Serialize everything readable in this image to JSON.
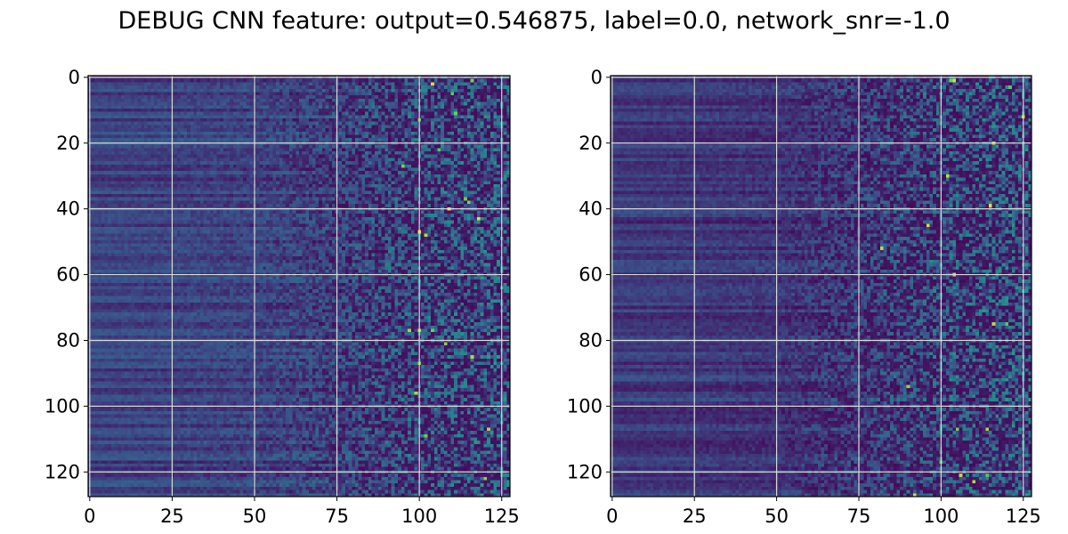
{
  "figure": {
    "title": "DEBUG CNN feature: output=0.546875, label=0.0, network_snr=-1.0"
  },
  "colormap": [
    "#440154",
    "#3b528b",
    "#21918c",
    "#5ec962",
    "#fde725"
  ],
  "chart_data": [
    {
      "type": "heatmap",
      "title": "",
      "xlabel": "",
      "ylabel": "",
      "shape": [
        128,
        128
      ],
      "xlim": [
        -0.5,
        127.5
      ],
      "ylim": [
        127.5,
        -0.5
      ],
      "y_axis_inverted": true,
      "x_ticks": [
        0,
        25,
        50,
        75,
        100,
        125
      ],
      "y_ticks": [
        0,
        20,
        40,
        60,
        80,
        100,
        120
      ],
      "grid": true,
      "colormap": "viridis",
      "value_range": [
        0,
        1
      ],
      "column_noise_profile": {
        "x": [
          0,
          50,
          75,
          100,
          127
        ],
        "noise": [
          0.03,
          0.07,
          0.15,
          0.3,
          0.36
        ]
      },
      "column_base_profile": {
        "x": [
          0,
          50,
          75,
          100,
          127
        ],
        "base": [
          0.2,
          0.19,
          0.17,
          0.13,
          0.13
        ]
      },
      "row_band_amplitude": 0.09,
      "hot_spots": [
        [
          104,
          2
        ],
        [
          110,
          5
        ],
        [
          116,
          1
        ],
        [
          100,
          13
        ],
        [
          111,
          11
        ],
        [
          115,
          38
        ],
        [
          114,
          37
        ],
        [
          109,
          40
        ],
        [
          118,
          43
        ],
        [
          100,
          47
        ],
        [
          102,
          48
        ],
        [
          97,
          77
        ],
        [
          100,
          77
        ],
        [
          104,
          77
        ],
        [
          108,
          81
        ],
        [
          116,
          85
        ],
        [
          100,
          87
        ],
        [
          99,
          96
        ],
        [
          102,
          109
        ],
        [
          121,
          107
        ],
        [
          120,
          122
        ],
        [
          95,
          27
        ],
        [
          106,
          22
        ]
      ]
    },
    {
      "type": "heatmap",
      "title": "",
      "xlabel": "",
      "ylabel": "",
      "shape": [
        128,
        128
      ],
      "xlim": [
        -0.5,
        127.5
      ],
      "ylim": [
        127.5,
        -0.5
      ],
      "y_axis_inverted": true,
      "x_ticks": [
        0,
        25,
        50,
        75,
        100,
        125
      ],
      "y_ticks": [
        0,
        20,
        40,
        60,
        80,
        100,
        120
      ],
      "grid": true,
      "colormap": "viridis",
      "value_range": [
        0,
        1
      ],
      "column_noise_profile": {
        "x": [
          0,
          50,
          75,
          100,
          127
        ],
        "noise": [
          0.03,
          0.06,
          0.17,
          0.32,
          0.38
        ]
      },
      "column_base_profile": {
        "x": [
          0,
          50,
          75,
          100,
          127
        ],
        "base": [
          0.17,
          0.15,
          0.13,
          0.11,
          0.11
        ]
      },
      "row_band_amplitude": 0.09,
      "hot_spots": [
        [
          103,
          1
        ],
        [
          104,
          1
        ],
        [
          121,
          3
        ],
        [
          116,
          20
        ],
        [
          115,
          39
        ],
        [
          82,
          52
        ],
        [
          104,
          60
        ],
        [
          116,
          75
        ],
        [
          120,
          75
        ],
        [
          90,
          94
        ],
        [
          105,
          107
        ],
        [
          114,
          107
        ],
        [
          92,
          127
        ],
        [
          106,
          121
        ],
        [
          114,
          121
        ],
        [
          100,
          117
        ],
        [
          110,
          123
        ],
        [
          102,
          30
        ],
        [
          96,
          45
        ],
        [
          125,
          12
        ]
      ]
    }
  ]
}
